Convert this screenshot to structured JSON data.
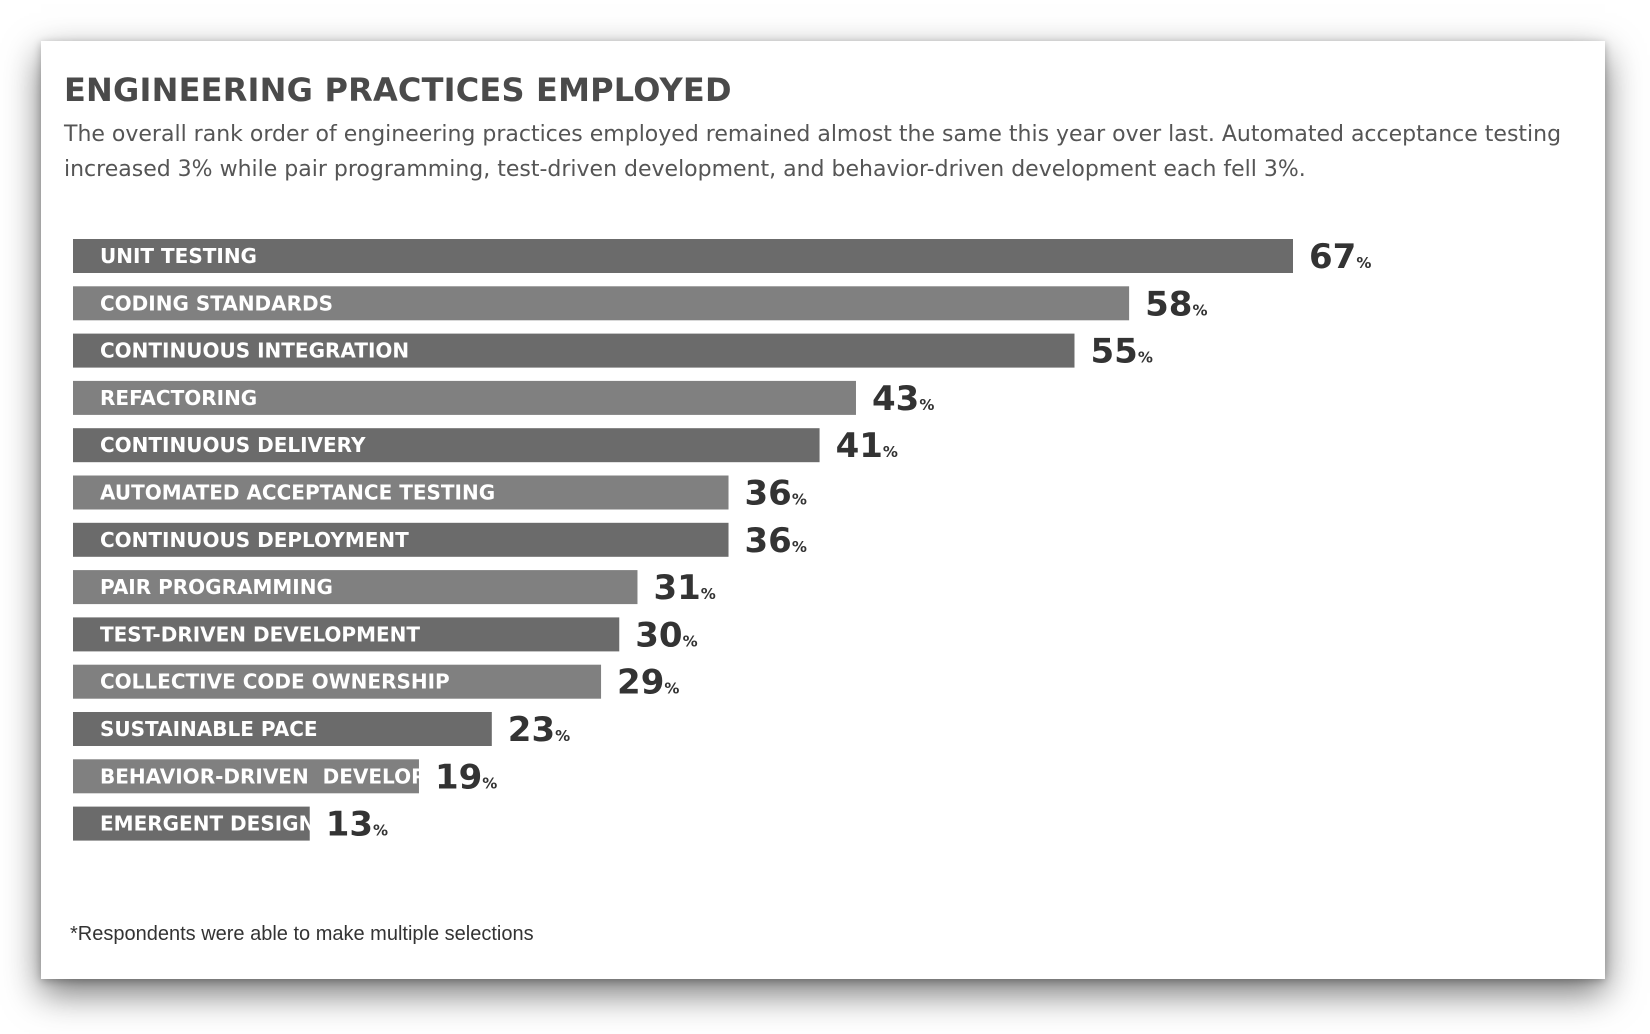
{
  "title": "ENGINEERING PRACTICES EMPLOYED",
  "subtitle": "The overall rank order of engineering practices employed remained almost the same this year over last. Automated acceptance testing increased 3% while pair programming, test-driven development, and behavior-driven development each fell 3%.",
  "footnote": "*Respondents were able to make multiple selections",
  "colors": {
    "bar_dark": "#6b6b6b",
    "bar_light": "#808080",
    "bar_label": "#ffffff",
    "value_text": "#333333"
  },
  "chart_data": {
    "type": "bar",
    "orientation": "horizontal",
    "value_suffix": "%",
    "categories": [
      "UNIT TESTING",
      "CODING STANDARDS",
      "CONTINUOUS INTEGRATION",
      "REFACTORING",
      "CONTINUOUS DELIVERY",
      "AUTOMATED ACCEPTANCE TESTING",
      "CONTINUOUS DEPLOYMENT",
      "PAIR PROGRAMMING",
      "TEST-DRIVEN DEVELOPMENT",
      "COLLECTIVE CODE OWNERSHIP",
      "SUSTAINABLE PACE",
      "BEHAVIOR-DRIVEN  DEVELOPMENT (BDD)",
      "EMERGENT DESIGN"
    ],
    "values": [
      67,
      58,
      55,
      43,
      41,
      36,
      36,
      31,
      30,
      29,
      23,
      19,
      13
    ],
    "grid": false,
    "legend": "none"
  }
}
